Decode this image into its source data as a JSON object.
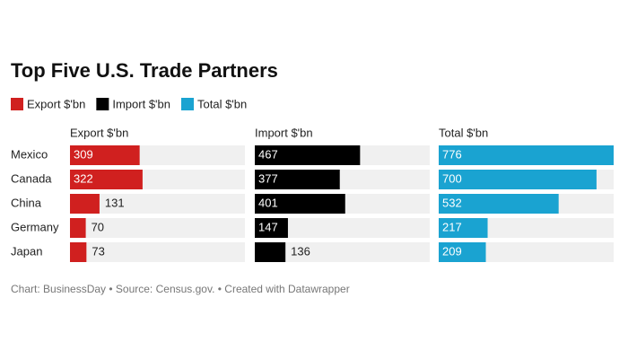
{
  "chart_data": {
    "type": "split-bar",
    "title": "Top Five U.S. Trade Partners",
    "categories": [
      "Mexico",
      "Canada",
      "China",
      "Germany",
      "Japan"
    ],
    "series": [
      {
        "name": "Export $'bn",
        "color": "#d0201f",
        "values": [
          309,
          322,
          131,
          70,
          73
        ]
      },
      {
        "name": "Import $'bn",
        "color": "#000000",
        "values": [
          467,
          377,
          401,
          147,
          136
        ]
      },
      {
        "name": "Total $'bn",
        "color": "#1aa3d1",
        "values": [
          776,
          700,
          532,
          217,
          209
        ]
      }
    ],
    "footer": "Chart: BusinessDay • Source: Census.gov. • Created with Datawrapper"
  }
}
